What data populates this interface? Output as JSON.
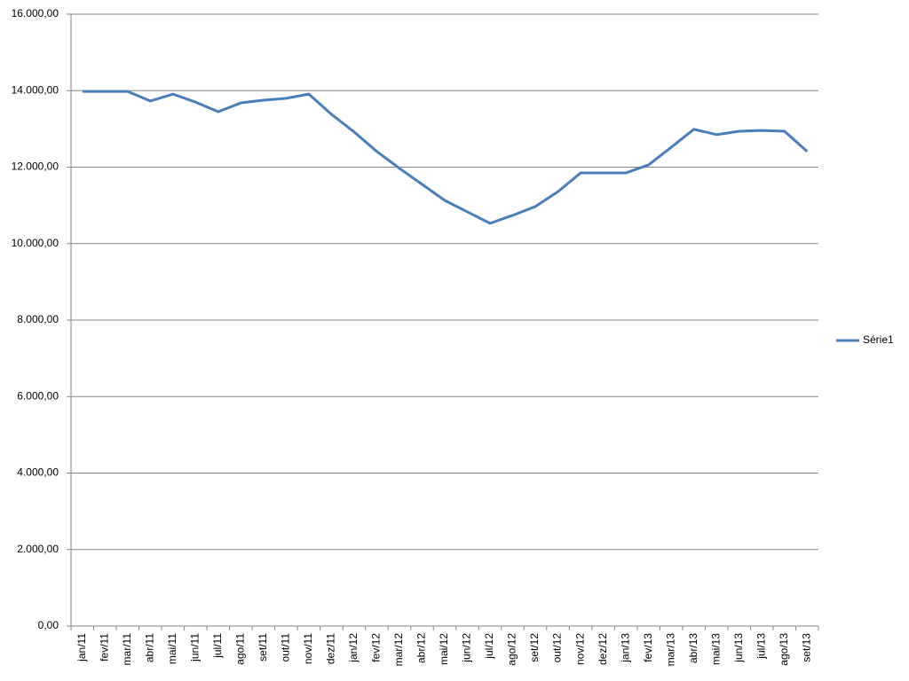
{
  "chart_data": {
    "type": "line",
    "categories": [
      "jan/11",
      "fev/11",
      "mar/11",
      "abr/11",
      "mai/11",
      "jun/11",
      "jul/11",
      "ago/11",
      "set/11",
      "out/11",
      "nov/11",
      "dez/11",
      "jan/12",
      "fev/12",
      "mar/12",
      "abr/12",
      "mai/12",
      "jun/12",
      "jul/12",
      "ago/12",
      "set/12",
      "out/12",
      "nov/12",
      "dez/12",
      "jan/13",
      "fev/13",
      "mar/13",
      "abr/13",
      "mai/13",
      "jun/13",
      "jul/13",
      "ago/13",
      "set/13"
    ],
    "series": [
      {
        "name": "Série1",
        "color": "#4a7ebb",
        "values": [
          13980,
          13980,
          13980,
          13730,
          13910,
          13700,
          13450,
          13680,
          13750,
          13800,
          13910,
          13380,
          12920,
          12410,
          11970,
          11550,
          11130,
          10830,
          10530,
          10740,
          10970,
          11360,
          11850,
          11850,
          11850,
          12060,
          12520,
          12990,
          12850,
          12940,
          12960,
          12940,
          12410
        ]
      }
    ],
    "ylim": [
      0,
      16000
    ],
    "yticks": [
      {
        "value": 0,
        "label": "0,00"
      },
      {
        "value": 2000,
        "label": "2.000,00"
      },
      {
        "value": 4000,
        "label": "4.000,00"
      },
      {
        "value": 6000,
        "label": "6.000,00"
      },
      {
        "value": 8000,
        "label": "8.000,00"
      },
      {
        "value": 10000,
        "label": "10.000,00"
      },
      {
        "value": 12000,
        "label": "12.000,00"
      },
      {
        "value": 14000,
        "label": "14.000,00"
      },
      {
        "value": 16000,
        "label": "16.000,00"
      }
    ],
    "grid": true,
    "legend": "right"
  }
}
